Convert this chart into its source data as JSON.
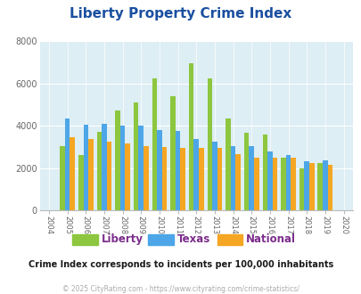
{
  "title": "Liberty Property Crime Index",
  "years": [
    2004,
    2005,
    2006,
    2007,
    2008,
    2009,
    2010,
    2011,
    2012,
    2013,
    2014,
    2015,
    2016,
    2017,
    2018,
    2019,
    2020
  ],
  "liberty": [
    null,
    3050,
    2600,
    3700,
    4700,
    5100,
    6250,
    5400,
    6950,
    6250,
    4350,
    3650,
    3600,
    2500,
    2000,
    2250,
    null
  ],
  "texas": [
    null,
    4350,
    4050,
    4100,
    4000,
    4000,
    3800,
    3750,
    3350,
    3250,
    3050,
    3050,
    2800,
    2600,
    2300,
    2350,
    null
  ],
  "national": [
    null,
    3450,
    3350,
    3250,
    3150,
    3050,
    3000,
    2950,
    2950,
    2950,
    2650,
    2500,
    2500,
    2500,
    2250,
    2150,
    null
  ],
  "liberty_color": "#8dc63f",
  "texas_color": "#4da6e8",
  "national_color": "#f5a623",
  "bg_color": "#ddeef4",
  "ylim": [
    0,
    8000
  ],
  "yticks": [
    0,
    2000,
    4000,
    6000,
    8000
  ],
  "legend_labels": [
    "Liberty",
    "Texas",
    "National"
  ],
  "subtitle": "Crime Index corresponds to incidents per 100,000 inhabitants",
  "footer": "© 2025 CityRating.com - https://www.cityrating.com/crime-statistics/",
  "title_color": "#1a4fa0",
  "subtitle_color": "#1a1a1a",
  "footer_color": "#aaaaaa",
  "legend_label_color": "#7b2d8b",
  "grid_color": "#ffffff"
}
